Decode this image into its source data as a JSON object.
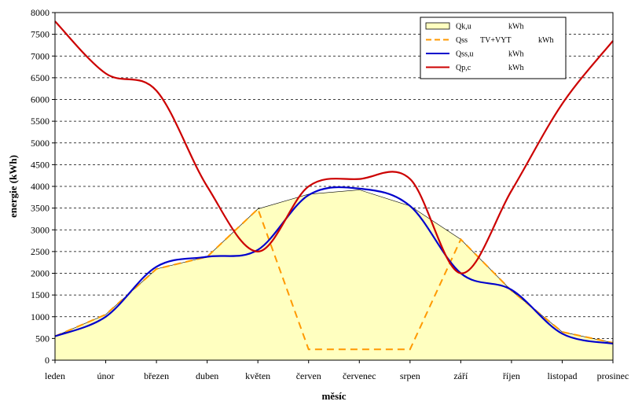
{
  "chart_data": {
    "type": "line",
    "xlabel": "měsíc",
    "ylabel": "energie (kWh)",
    "categories": [
      "leden",
      "únor",
      "březen",
      "duben",
      "květen",
      "červen",
      "červenec",
      "srpen",
      "září",
      "říjen",
      "listopad",
      "prosinec"
    ],
    "ylim": [
      0,
      8000
    ],
    "yticks": [
      0,
      500,
      1000,
      1500,
      2000,
      2500,
      3000,
      3500,
      4000,
      4500,
      5000,
      5500,
      6000,
      6500,
      7000,
      7500,
      8000
    ],
    "grid": "horizontal dashed",
    "legend_position": "top-right",
    "series": [
      {
        "name": "Qk,u",
        "unit": "kWh",
        "style": "area",
        "color": "#ffffc0",
        "values": [
          550,
          1050,
          2100,
          2380,
          3480,
          3820,
          3920,
          3550,
          2780,
          1600,
          650,
          400
        ]
      },
      {
        "name": "Qss",
        "name_suffix": "TV+VYT",
        "unit": "kWh",
        "style": "dashed",
        "color": "#ff9900",
        "values": [
          550,
          1050,
          2100,
          2380,
          3480,
          250,
          250,
          250,
          2780,
          1600,
          650,
          400
        ]
      },
      {
        "name": "Qss,u",
        "unit": "kWh",
        "style": "line",
        "color": "#0000cc",
        "values": [
          550,
          1000,
          2150,
          2380,
          2540,
          3800,
          3950,
          3550,
          2000,
          1620,
          610,
          380
        ]
      },
      {
        "name": "Qp,c",
        "unit": "kWh",
        "style": "line",
        "color": "#cc0000",
        "values": [
          7800,
          6600,
          6200,
          4000,
          2500,
          4000,
          4170,
          4170,
          2000,
          3900,
          5900,
          7350
        ]
      }
    ]
  }
}
